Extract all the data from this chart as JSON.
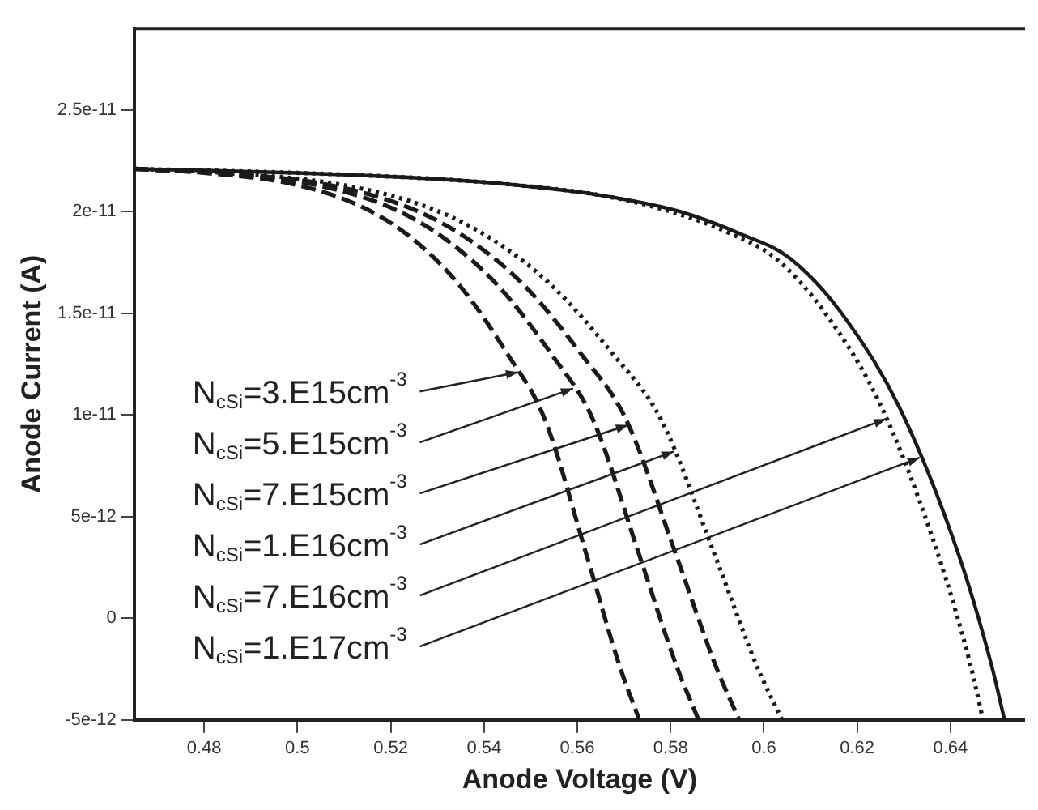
{
  "chart_data": {
    "type": "line",
    "xlabel": "Anode Voltage (V)",
    "ylabel": "Anode Current (A)",
    "xlim": [
      0.465,
      0.656
    ],
    "xticks": [
      0.48,
      0.5,
      0.52,
      0.54,
      0.56,
      0.58,
      0.6,
      0.62,
      0.64
    ],
    "ylim": [
      -5e-12,
      2.9e-11
    ],
    "yticks": [
      {
        "value": -5e-12,
        "label": "-5e-12"
      },
      {
        "value": 0,
        "label": "0"
      },
      {
        "value": 5e-12,
        "label": "5e-12"
      },
      {
        "value": 1e-11,
        "label": "1e-11"
      },
      {
        "value": 1.5e-11,
        "label": "1.5e-11"
      },
      {
        "value": 2e-11,
        "label": "2e-11"
      },
      {
        "value": 2.5e-11,
        "label": "2.5e-11"
      }
    ],
    "grid": false,
    "marker": "none",
    "series": [
      {
        "color": "#1a1a1a",
        "line_style": "dashed",
        "x": [
          0.465,
          0.48,
          0.5,
          0.515,
          0.525,
          0.535,
          0.545,
          0.553,
          0.562,
          0.569,
          0.5733
        ],
        "values": [
          2.21e-11,
          2.19e-11,
          2.13e-11,
          2.01e-11,
          1.86e-11,
          1.63e-11,
          1.3e-11,
          9.8e-12,
          3.1e-12,
          -2.3e-12,
          -5e-12
        ]
      },
      {
        "color": "#1a1a1a",
        "line_style": "dashed",
        "x": [
          0.465,
          0.4818,
          0.5041,
          0.5209,
          0.532,
          0.5432,
          0.5544,
          0.5633,
          0.5733,
          0.5812,
          0.586
        ],
        "values": [
          2.21e-11,
          2.19e-11,
          2.13e-11,
          2.01e-11,
          1.86e-11,
          1.63e-11,
          1.3e-11,
          9.8e-12,
          3.1e-12,
          -2.3e-12,
          -5e-12
        ]
      },
      {
        "color": "#1a1a1a",
        "line_style": "dashed",
        "x": [
          0.465,
          0.483,
          0.5069,
          0.5249,
          0.5369,
          0.5489,
          0.5608,
          0.5704,
          0.5812,
          0.5896,
          0.5947
        ],
        "values": [
          2.21e-11,
          2.19e-11,
          2.13e-11,
          2.01e-11,
          1.86e-11,
          1.63e-11,
          1.3e-11,
          9.8e-12,
          3.1e-12,
          -2.3e-12,
          -5e-12
        ]
      },
      {
        "color": "#1a1a1a",
        "line_style": "dotted",
        "x": [
          0.465,
          0.4842,
          0.5099,
          0.5292,
          0.542,
          0.5548,
          0.5676,
          0.5779,
          0.5895,
          0.5984,
          0.6039
        ],
        "values": [
          2.21e-11,
          2.19e-11,
          2.13e-11,
          2.01e-11,
          1.86e-11,
          1.63e-11,
          1.3e-11,
          9.8e-12,
          3.1e-12,
          -2.3e-12,
          -5e-12
        ]
      },
      {
        "color": "#1a1a1a",
        "line_style": "dotted",
        "x": [
          0.465,
          0.5,
          0.53,
          0.547,
          0.565,
          0.58,
          0.593,
          0.6025,
          0.6135,
          0.6252,
          0.6374,
          0.6443,
          0.647
        ],
        "values": [
          2.21e-11,
          2.19e-11,
          2.16e-11,
          2.13e-11,
          2.08e-11,
          2e-11,
          1.89e-11,
          1.77e-11,
          1.49e-11,
          1.04e-11,
          3.1e-12,
          -2.3e-12,
          -5e-12
        ]
      },
      {
        "color": "#1a1a1a",
        "line_style": "solid",
        "x": [
          0.465,
          0.5,
          0.53,
          0.547,
          0.565,
          0.582,
          0.595,
          0.6056,
          0.617,
          0.629,
          0.6418,
          0.6488,
          0.6516
        ],
        "values": [
          2.21e-11,
          2.19e-11,
          2.16e-11,
          2.13e-11,
          2.08e-11,
          2e-11,
          1.89e-11,
          1.77e-11,
          1.49e-11,
          1.04e-11,
          3.1e-12,
          -2.3e-12,
          -5e-12
        ]
      }
    ],
    "annotations": [
      {
        "text": "N$_{cSi}$=3.E15cm$^{-3}$",
        "x": 0.5473,
        "y": 1.21e-11
      },
      {
        "text": "N$_{cSi}$=5.E15cm$^{-3}$",
        "x": 0.5591,
        "y": 1.13e-11
      },
      {
        "text": "N$_{cSi}$=7.E15cm$^{-3}$",
        "x": 0.5709,
        "y": 9.5e-12
      },
      {
        "text": "N$_{cSi}$=1.E16cm$^{-3}$",
        "x": 0.5807,
        "y": 8.2e-12
      },
      {
        "text": "N$_{cSi}$=7.E16cm$^{-3}$",
        "x": 0.6262,
        "y": 9.8e-12
      },
      {
        "text": "N$_{cSi}$=1.E17cm$^{-3}$",
        "x": 0.6334,
        "y": 7.9e-12
      }
    ]
  }
}
